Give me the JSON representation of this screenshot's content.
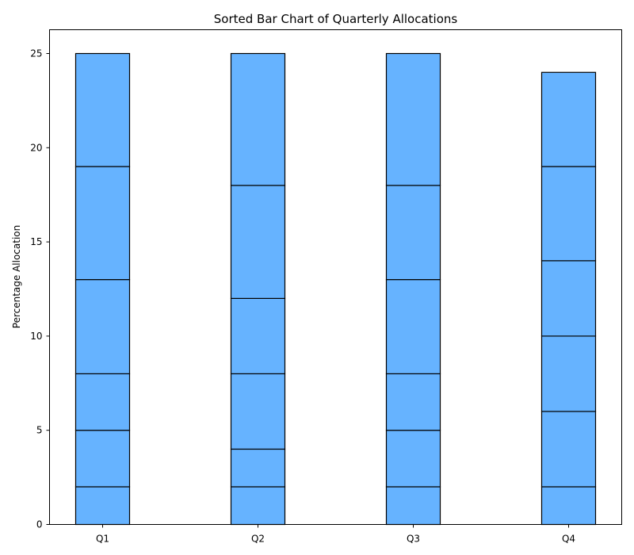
{
  "chart_data": {
    "type": "bar",
    "stacked": true,
    "title": "Sorted Bar Chart of Quarterly Allocations",
    "xlabel": "",
    "ylabel": "Percentage Allocation",
    "categories": [
      "Q1",
      "Q2",
      "Q3",
      "Q4"
    ],
    "series": [
      {
        "values": [
          2,
          2,
          2,
          2
        ]
      },
      {
        "values": [
          3,
          2,
          3,
          4
        ]
      },
      {
        "values": [
          3,
          4,
          3,
          4
        ]
      },
      {
        "values": [
          5,
          4,
          5,
          4
        ]
      },
      {
        "values": [
          6,
          6,
          5,
          5
        ]
      },
      {
        "values": [
          6,
          7,
          7,
          5
        ]
      }
    ],
    "totals": [
      25,
      25,
      25,
      24
    ],
    "ylim": [
      0,
      26.25
    ],
    "yticks": [
      0,
      5,
      10,
      15,
      20,
      25
    ],
    "grid": false,
    "bar_color": "#66b3ff",
    "edge_color": "#000000"
  }
}
